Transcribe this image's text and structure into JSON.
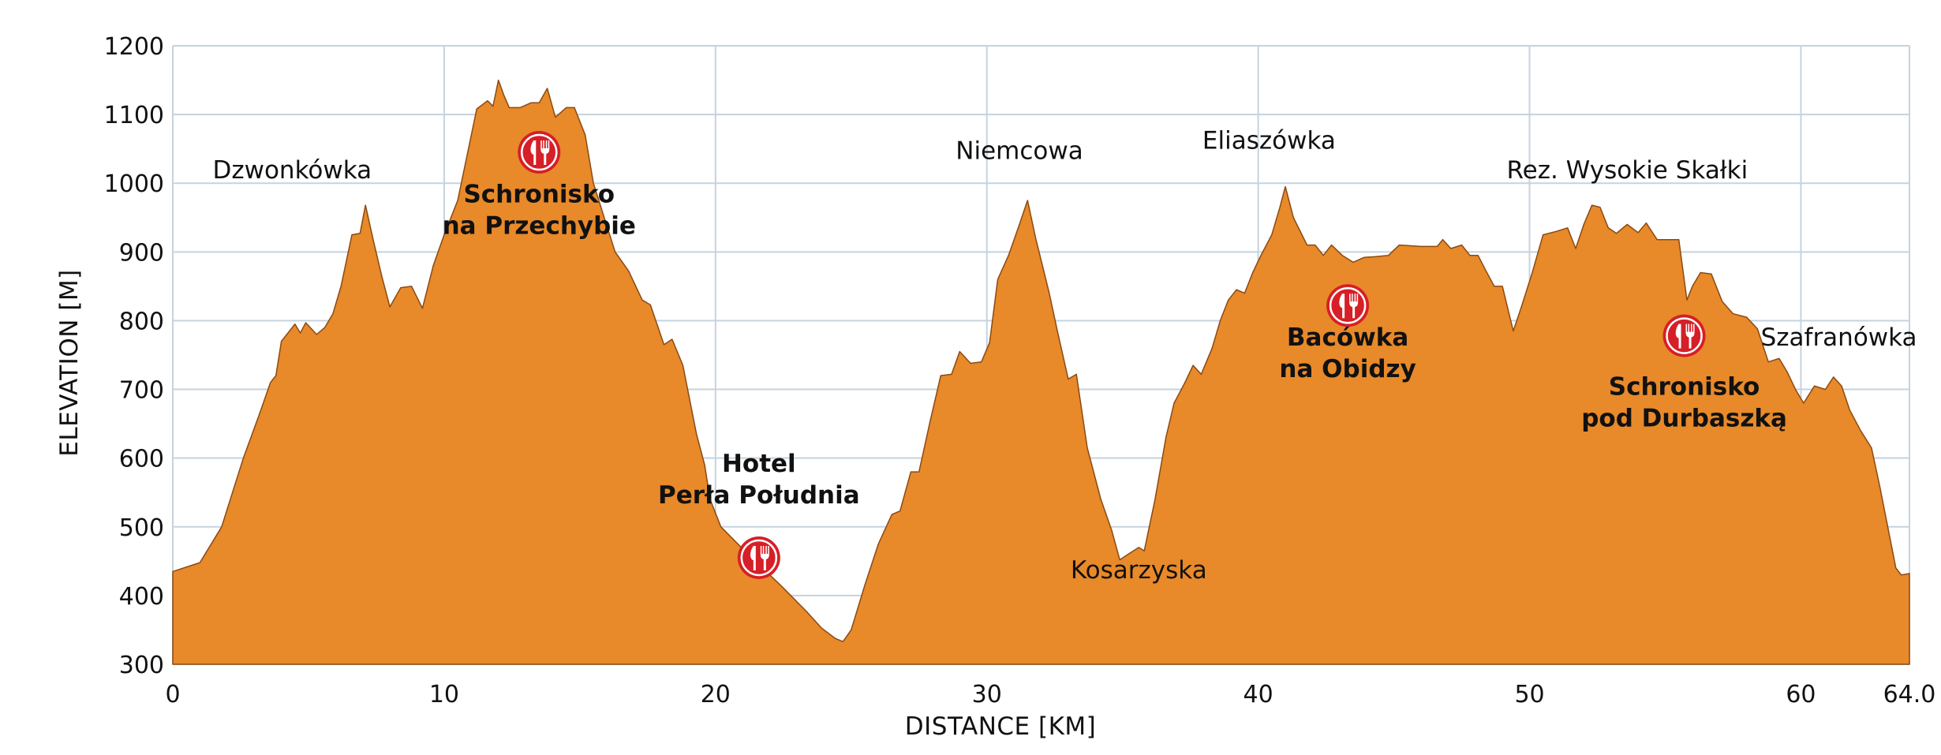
{
  "colors": {
    "area_fill": "#E8892A",
    "area_stroke": "#8A4A12",
    "grid": "#C5D3DF",
    "icon_fill": "#D61F26",
    "icon_ring": "#FFFFFF"
  },
  "chart_data": {
    "type": "area",
    "xlabel": "DISTANCE [KM]",
    "ylabel": "ELEVATION [M]",
    "xlim": [
      0,
      64.0
    ],
    "ylim": [
      300,
      1200
    ],
    "grid": true,
    "x_ticks": [
      {
        "value": 0,
        "label": "0"
      },
      {
        "value": 10,
        "label": "10"
      },
      {
        "value": 20,
        "label": "20"
      },
      {
        "value": 30,
        "label": "30"
      },
      {
        "value": 40,
        "label": "40"
      },
      {
        "value": 50,
        "label": "50"
      },
      {
        "value": 60,
        "label": "60"
      },
      {
        "value": 64.0,
        "label": "64.0"
      }
    ],
    "y_ticks": [
      {
        "value": 300,
        "label": "300"
      },
      {
        "value": 400,
        "label": "400"
      },
      {
        "value": 500,
        "label": "500"
      },
      {
        "value": 600,
        "label": "600"
      },
      {
        "value": 700,
        "label": "700"
      },
      {
        "value": 800,
        "label": "800"
      },
      {
        "value": 900,
        "label": "900"
      },
      {
        "value": 1000,
        "label": "1000"
      },
      {
        "value": 1100,
        "label": "1100"
      },
      {
        "value": 1200,
        "label": "1200"
      }
    ],
    "profile": [
      [
        0,
        435
      ],
      [
        1,
        448
      ],
      [
        1.8,
        500
      ],
      [
        2.6,
        600
      ],
      [
        3.2,
        665
      ],
      [
        3.6,
        710
      ],
      [
        3.8,
        720
      ],
      [
        4.0,
        770
      ],
      [
        4.5,
        795
      ],
      [
        4.7,
        782
      ],
      [
        4.9,
        797
      ],
      [
        5.3,
        780
      ],
      [
        5.6,
        790
      ],
      [
        5.9,
        810
      ],
      [
        6.2,
        850
      ],
      [
        6.6,
        925
      ],
      [
        6.9,
        927
      ],
      [
        7.1,
        968
      ],
      [
        7.4,
        915
      ],
      [
        7.7,
        865
      ],
      [
        8.0,
        820
      ],
      [
        8.4,
        848
      ],
      [
        8.8,
        850
      ],
      [
        9.2,
        818
      ],
      [
        9.6,
        880
      ],
      [
        10.0,
        925
      ],
      [
        10.5,
        975
      ],
      [
        11.2,
        1108
      ],
      [
        11.6,
        1120
      ],
      [
        11.8,
        1112
      ],
      [
        12.0,
        1150
      ],
      [
        12.2,
        1128
      ],
      [
        12.4,
        1110
      ],
      [
        12.8,
        1110
      ],
      [
        13.2,
        1117
      ],
      [
        13.5,
        1117
      ],
      [
        13.8,
        1138
      ],
      [
        14.1,
        1096
      ],
      [
        14.5,
        1110
      ],
      [
        14.8,
        1110
      ],
      [
        15.2,
        1070
      ],
      [
        15.5,
        1000
      ],
      [
        15.9,
        950
      ],
      [
        16.3,
        900
      ],
      [
        16.8,
        872
      ],
      [
        17.3,
        830
      ],
      [
        17.6,
        823
      ],
      [
        18.1,
        765
      ],
      [
        18.4,
        773
      ],
      [
        18.8,
        735
      ],
      [
        19.3,
        635
      ],
      [
        19.6,
        590
      ],
      [
        19.8,
        540
      ],
      [
        20.2,
        500
      ],
      [
        20.7,
        480
      ],
      [
        21.2,
        460
      ],
      [
        21.6,
        450
      ],
      [
        22.0,
        430
      ],
      [
        22.4,
        415
      ],
      [
        22.9,
        395
      ],
      [
        23.4,
        375
      ],
      [
        23.9,
        353
      ],
      [
        24.4,
        338
      ],
      [
        24.7,
        333
      ],
      [
        25.0,
        350
      ],
      [
        25.5,
        415
      ],
      [
        26.0,
        475
      ],
      [
        26.5,
        518
      ],
      [
        26.8,
        523
      ],
      [
        27.2,
        580
      ],
      [
        27.5,
        580
      ],
      [
        27.9,
        652
      ],
      [
        28.3,
        720
      ],
      [
        28.7,
        722
      ],
      [
        29.0,
        755
      ],
      [
        29.4,
        738
      ],
      [
        29.8,
        740
      ],
      [
        30.1,
        768
      ],
      [
        30.4,
        860
      ],
      [
        30.8,
        895
      ],
      [
        31.2,
        940
      ],
      [
        31.5,
        975
      ],
      [
        31.8,
        920
      ],
      [
        32.3,
        840
      ],
      [
        32.6,
        785
      ],
      [
        33.0,
        715
      ],
      [
        33.3,
        722
      ],
      [
        33.7,
        615
      ],
      [
        34.2,
        540
      ],
      [
        34.6,
        495
      ],
      [
        34.9,
        452
      ],
      [
        35.2,
        460
      ],
      [
        35.6,
        470
      ],
      [
        35.8,
        465
      ],
      [
        36.2,
        540
      ],
      [
        36.6,
        630
      ],
      [
        36.9,
        680
      ],
      [
        37.3,
        710
      ],
      [
        37.6,
        735
      ],
      [
        37.9,
        722
      ],
      [
        38.3,
        760
      ],
      [
        38.6,
        800
      ],
      [
        38.9,
        830
      ],
      [
        39.2,
        845
      ],
      [
        39.5,
        840
      ],
      [
        39.8,
        870
      ],
      [
        40.1,
        895
      ],
      [
        40.5,
        925
      ],
      [
        40.8,
        965
      ],
      [
        41.0,
        995
      ],
      [
        41.3,
        950
      ],
      [
        41.8,
        910
      ],
      [
        42.1,
        910
      ],
      [
        42.4,
        895
      ],
      [
        42.7,
        910
      ],
      [
        43.1,
        895
      ],
      [
        43.5,
        885
      ],
      [
        43.9,
        892
      ],
      [
        44.3,
        893
      ],
      [
        44.8,
        895
      ],
      [
        45.2,
        910
      ],
      [
        46.0,
        908
      ],
      [
        46.6,
        908
      ],
      [
        46.8,
        918
      ],
      [
        47.1,
        905
      ],
      [
        47.5,
        910
      ],
      [
        47.8,
        895
      ],
      [
        48.1,
        895
      ],
      [
        48.4,
        872
      ],
      [
        48.7,
        850
      ],
      [
        49.0,
        850
      ],
      [
        49.4,
        785
      ],
      [
        49.7,
        820
      ],
      [
        50.1,
        870
      ],
      [
        50.5,
        925
      ],
      [
        51.0,
        930
      ],
      [
        51.4,
        935
      ],
      [
        51.7,
        905
      ],
      [
        52.0,
        940
      ],
      [
        52.3,
        968
      ],
      [
        52.6,
        965
      ],
      [
        52.9,
        935
      ],
      [
        53.2,
        927
      ],
      [
        53.6,
        940
      ],
      [
        54.0,
        928
      ],
      [
        54.3,
        942
      ],
      [
        54.7,
        918
      ],
      [
        55.1,
        918
      ],
      [
        55.5,
        918
      ],
      [
        55.8,
        830
      ],
      [
        56.0,
        850
      ],
      [
        56.3,
        870
      ],
      [
        56.7,
        868
      ],
      [
        57.1,
        828
      ],
      [
        57.5,
        810
      ],
      [
        58.0,
        805
      ],
      [
        58.4,
        788
      ],
      [
        58.8,
        740
      ],
      [
        59.2,
        745
      ],
      [
        59.5,
        725
      ],
      [
        59.8,
        700
      ],
      [
        60.1,
        680
      ],
      [
        60.5,
        705
      ],
      [
        60.9,
        700
      ],
      [
        61.2,
        718
      ],
      [
        61.5,
        705
      ],
      [
        61.8,
        670
      ],
      [
        62.2,
        640
      ],
      [
        62.6,
        615
      ],
      [
        62.9,
        560
      ],
      [
        63.2,
        500
      ],
      [
        63.5,
        440
      ],
      [
        63.7,
        430
      ],
      [
        64.0,
        432
      ]
    ],
    "annotations": [
      {
        "label_lines": [
          "Dzwonkówka"
        ],
        "bold": false,
        "x": 4.4,
        "y": 1007
      },
      {
        "label_lines": [
          "Schronisko",
          "na Przechybie"
        ],
        "bold": true,
        "x": 13.5,
        "y": 972,
        "icon": true,
        "icon_x": 13.5,
        "icon_y": 1045
      },
      {
        "label_lines": [
          "Hotel",
          "Perła Południa"
        ],
        "bold": true,
        "x": 21.6,
        "y": 580,
        "icon": true,
        "icon_x": 21.6,
        "icon_y": 455
      },
      {
        "label_lines": [
          "Niemcowa"
        ],
        "bold": false,
        "x": 31.2,
        "y": 1035
      },
      {
        "label_lines": [
          "Kosarzyska"
        ],
        "bold": false,
        "x": 35.6,
        "y": 425
      },
      {
        "label_lines": [
          "Eliaszówka"
        ],
        "bold": false,
        "x": 40.4,
        "y": 1050
      },
      {
        "label_lines": [
          "Bacówka",
          "na Obidzy"
        ],
        "bold": true,
        "x": 43.3,
        "y": 764,
        "icon": true,
        "icon_x": 43.3,
        "icon_y": 822
      },
      {
        "label_lines": [
          "Rez. Wysokie Skałki"
        ],
        "bold": false,
        "x": 53.6,
        "y": 1007
      },
      {
        "label_lines": [
          "Schronisko",
          "pod Durbaszką"
        ],
        "bold": true,
        "x": 55.7,
        "y": 692,
        "icon": true,
        "icon_x": 55.7,
        "icon_y": 778
      },
      {
        "label_lines": [
          "Szafranówka"
        ],
        "bold": false,
        "x": 61.4,
        "y": 764
      }
    ]
  }
}
